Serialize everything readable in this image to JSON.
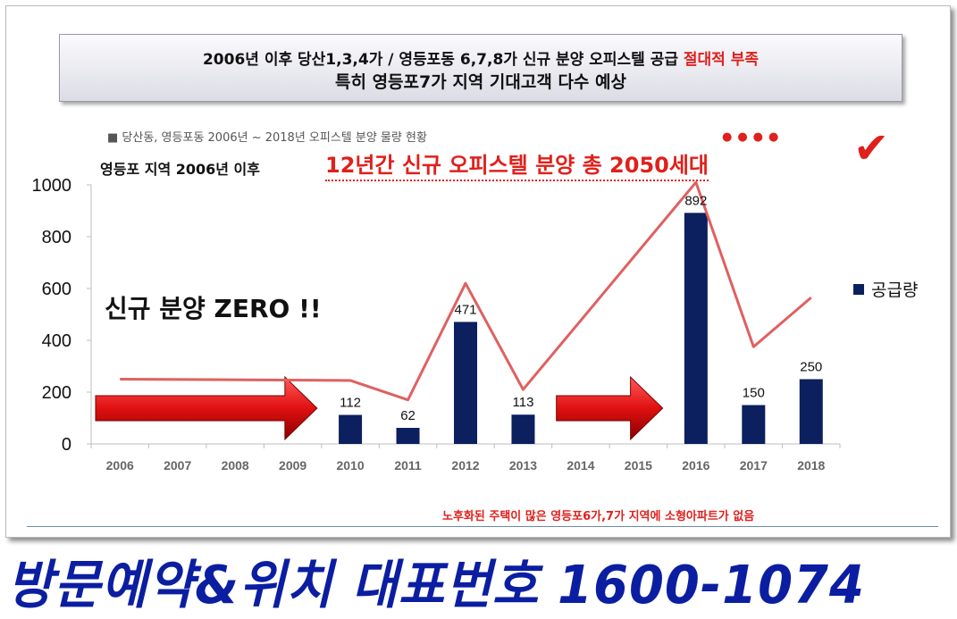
{
  "headline": {
    "line1_main": "2006년 이후 당산1,3,4가 / 영등포동 6,7,8가 신규 분양 오피스텔 공급 ",
    "line1_red": "절대적 부족",
    "line2": "특히 영등포7가 지역 기대고객 다수 예상"
  },
  "note": "■ 당산동, 영등포동 2006년 ~ 2018년 오피스텔 분양 물량 현황",
  "subtitle": {
    "left": "영등포 지역 2006년 이후",
    "right": "12년간 신규 오피스텔 분양 총 2050세대",
    "dots": "●●●●",
    "check": "✔"
  },
  "zero_text": "신규 분양 ZERO !!",
  "footnote": "노후화된 주택이 많은 영등포6가,7가 지역에 소형아파트가 없음",
  "banner": "방문예약&위치 대표번호 1600-1074",
  "colors": {
    "bar": "#0c1f5e",
    "trend": "#e06060",
    "arrow": "#e01818",
    "accent": "#e0201c"
  },
  "chart_data": {
    "type": "bar",
    "categories": [
      "2006",
      "2007",
      "2008",
      "2009",
      "2010",
      "2011",
      "2012",
      "2013",
      "2014",
      "2015",
      "2016",
      "2017",
      "2018"
    ],
    "series": [
      {
        "name": "공급량",
        "values": [
          0,
          0,
          0,
          0,
          112,
          62,
          471,
          113,
          0,
          0,
          892,
          150,
          250
        ]
      }
    ],
    "data_labels": [
      "",
      "",
      "",
      "",
      "112",
      "62",
      "471",
      "113",
      "",
      "",
      "892",
      "150",
      "250"
    ],
    "yticks": [
      "0",
      "200",
      "400",
      "600",
      "800",
      "1000"
    ],
    "ylim": [
      0,
      1000
    ],
    "trend_line": [
      {
        "x": "2006",
        "y": 250
      },
      {
        "x": "2010",
        "y": 245
      },
      {
        "x": "2011",
        "y": 170
      },
      {
        "x": "2012",
        "y": 620
      },
      {
        "x": "2013",
        "y": 210
      },
      {
        "x": "2016",
        "y": 1010
      },
      {
        "x": "2017",
        "y": 375
      },
      {
        "x": "2018",
        "y": 565
      }
    ],
    "arrows": [
      {
        "from": "2006",
        "to": "2009"
      },
      {
        "from": "2014",
        "to": "2015"
      }
    ],
    "legend": "right",
    "grid": false
  }
}
